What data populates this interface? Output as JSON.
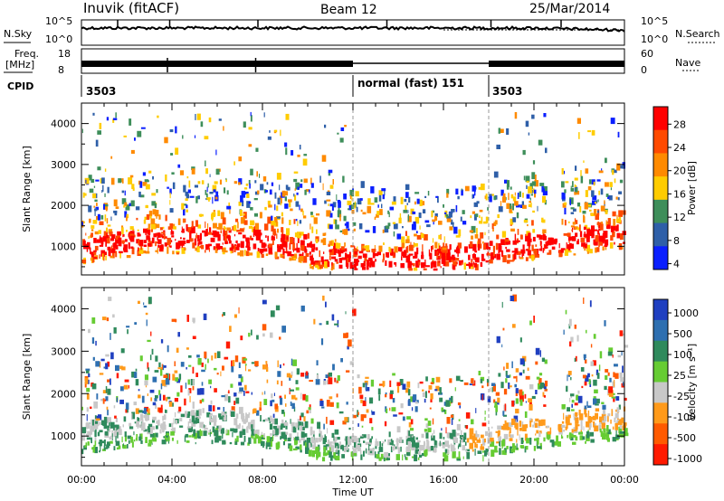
{
  "header": {
    "station": "Inuvik (fitACF)",
    "beam": "Beam 12",
    "date": "25/Mar/2014"
  },
  "strips": {
    "nsky_label": "N.Sky",
    "nsearch_label": "N.Search",
    "nsky_ticks": [
      "10^5",
      "10^0"
    ],
    "nsearch_ticks": [
      "10^5",
      "10^0"
    ],
    "freq_label": "Freq.",
    "freq_unit": "[MHz]",
    "freq_ticks": [
      "18",
      "8"
    ],
    "nave_label": "Nave",
    "nave_ticks": [
      "60",
      "0"
    ],
    "cpid_label": "CPID",
    "cpid_segments": [
      {
        "label": "3503",
        "start_hour": 0
      },
      {
        "label": "normal (fast) 151",
        "start_hour": 12
      },
      {
        "label": "3503",
        "start_hour": 18
      }
    ]
  },
  "chart_data": [
    {
      "type": "heatmap",
      "name": "power",
      "ylabel": "Slant Range [km]",
      "yticks": [
        1000,
        2000,
        3000,
        4000
      ],
      "ylim": [
        300,
        4500
      ],
      "xlim": [
        0,
        24
      ],
      "colorbar": {
        "label": "Power [dB]",
        "ticks": [
          "28",
          "24",
          "20",
          "16",
          "12",
          "8",
          "4"
        ],
        "colors": [
          "#ff0000",
          "#ff4a00",
          "#ff8a00",
          "#ffcc00",
          "#3e8e5a",
          "#2e5fa8",
          "#0a1fff"
        ]
      }
    },
    {
      "type": "heatmap",
      "name": "velocity",
      "ylabel": "Slant Range [km]",
      "yticks": [
        1000,
        2000,
        3000,
        4000
      ],
      "ylim": [
        300,
        4500
      ],
      "xlim": [
        0,
        24
      ],
      "xlabel": "Time UT",
      "xticks": [
        "00:00",
        "04:00",
        "08:00",
        "12:00",
        "16:00",
        "20:00",
        "00:00"
      ],
      "colorbar": {
        "label": "Velocity [m s⁻¹]",
        "ticks": [
          "1000",
          "500",
          "100",
          "25",
          "-25",
          "-100",
          "-500",
          "-1000"
        ],
        "colors": [
          "#1f3fc0",
          "#2e6fb0",
          "#2f8a5c",
          "#66cc33",
          "#c8c8c8",
          "#ff9a1a",
          "#ff5a00",
          "#ff1a00"
        ]
      }
    }
  ]
}
